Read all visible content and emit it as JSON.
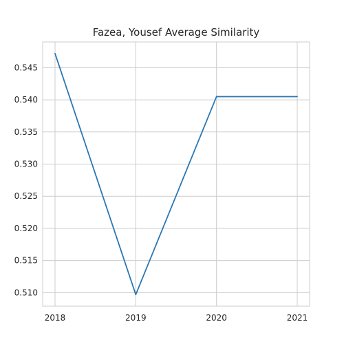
{
  "chart_data": {
    "type": "line",
    "title": "Fazea, Yousef Average Similarity",
    "xlabel": "",
    "ylabel": "",
    "x": [
      "2018",
      "2019",
      "2020",
      "2021"
    ],
    "series": [
      {
        "values": [
          0.5472,
          0.5097,
          0.5405,
          0.5405
        ],
        "color": "#2a77b4"
      }
    ],
    "y_ticks": [
      "0.510",
      "0.515",
      "0.520",
      "0.525",
      "0.530",
      "0.535",
      "0.540",
      "0.545"
    ],
    "ylim": [
      0.5079,
      0.549
    ],
    "grid": true,
    "legend": "none"
  }
}
